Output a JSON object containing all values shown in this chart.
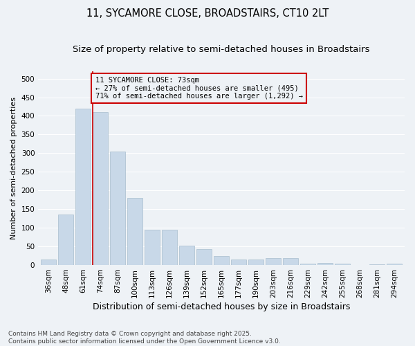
{
  "title": "11, SYCAMORE CLOSE, BROADSTAIRS, CT10 2LT",
  "subtitle": "Size of property relative to semi-detached houses in Broadstairs",
  "xlabel": "Distribution of semi-detached houses by size in Broadstairs",
  "ylabel": "Number of semi-detached properties",
  "categories": [
    "36sqm",
    "48sqm",
    "61sqm",
    "74sqm",
    "87sqm",
    "100sqm",
    "113sqm",
    "126sqm",
    "139sqm",
    "152sqm",
    "165sqm",
    "177sqm",
    "190sqm",
    "203sqm",
    "216sqm",
    "229sqm",
    "242sqm",
    "255sqm",
    "268sqm",
    "281sqm",
    "294sqm"
  ],
  "values": [
    15,
    135,
    420,
    410,
    305,
    180,
    95,
    95,
    53,
    42,
    25,
    15,
    15,
    18,
    18,
    4,
    6,
    4,
    1,
    2,
    3
  ],
  "bar_color": "#c8d8e8",
  "bar_edgecolor": "#a8bece",
  "marker_index": 3,
  "marker_color": "#cc0000",
  "annotation_line1": "11 SYCAMORE CLOSE: 73sqm",
  "annotation_line2": "← 27% of semi-detached houses are smaller (495)",
  "annotation_line3": "71% of semi-detached houses are larger (1,292) →",
  "annotation_box_color": "#cc0000",
  "ylim": [
    0,
    520
  ],
  "yticks": [
    0,
    50,
    100,
    150,
    200,
    250,
    300,
    350,
    400,
    450,
    500
  ],
  "background_color": "#eef2f6",
  "grid_color": "#ffffff",
  "footer": "Contains HM Land Registry data © Crown copyright and database right 2025.\nContains public sector information licensed under the Open Government Licence v3.0.",
  "title_fontsize": 10.5,
  "subtitle_fontsize": 9.5,
  "xlabel_fontsize": 9,
  "ylabel_fontsize": 8,
  "tick_fontsize": 7.5,
  "annotation_fontsize": 7.5,
  "footer_fontsize": 6.5
}
